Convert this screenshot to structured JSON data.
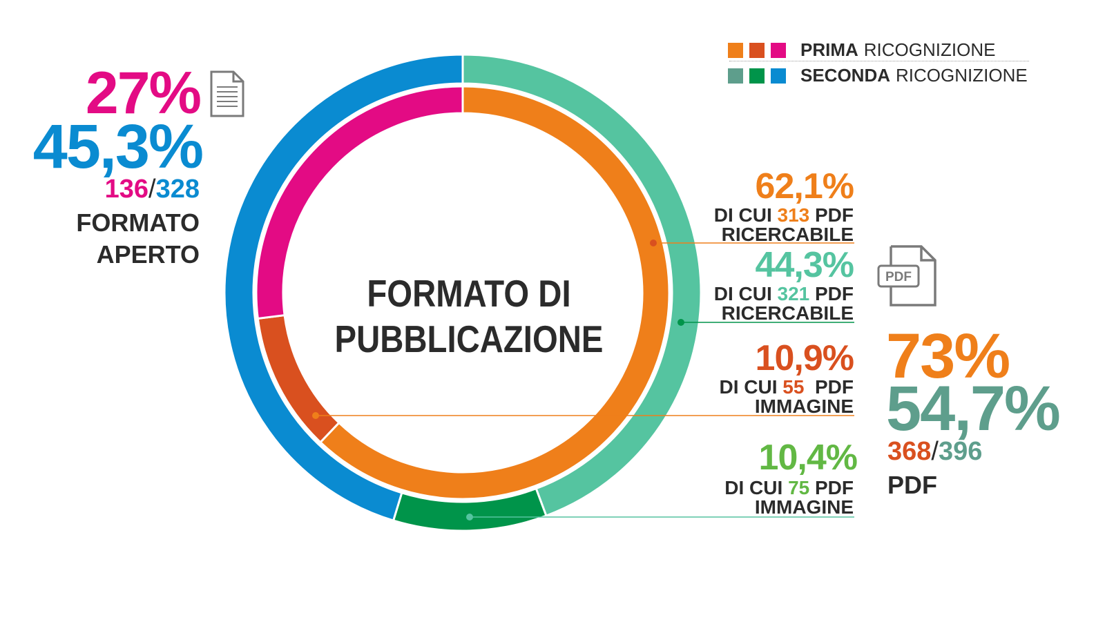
{
  "colors": {
    "prima_open": "#e30b84",
    "prima_pdf_searchable": "#ef7f1a",
    "prima_pdf_image": "#d9501f",
    "seconda_open": "#0a8bd1",
    "seconda_pdf_searchable": "#55c4a0",
    "seconda_pdf_image": "#00944a",
    "seconda_pdf_total": "#5e9e8c",
    "seconda_pdf_image_label": "#62b844",
    "icon": "#7a7a7a",
    "text": "#2b2b2b"
  },
  "legend": [
    {
      "bold": "PRIMA",
      "rest": "RICOGNIZIONE",
      "swatches": [
        "#ef7f1a",
        "#d9501f",
        "#e30b84"
      ]
    },
    {
      "bold": "SECONDA",
      "rest": "RICOGNIZIONE",
      "swatches": [
        "#5e9e8c",
        "#00944a",
        "#0a8bd1"
      ]
    }
  ],
  "center_title": [
    "FORMATO DI",
    "PUBBLICAZIONE"
  ],
  "open_format": {
    "pct_prima": "27%",
    "pct_seconda": "45,3%",
    "count_prima": "136",
    "slash": "/",
    "count_seconda": "328",
    "label_line1": "FORMATO",
    "label_line2": "APERTO",
    "icon": "document-icon"
  },
  "pdf_total": {
    "pct_prima": "73%",
    "pct_seconda": "54,7%",
    "count_prima": "368",
    "slash": "/",
    "count_seconda": "396",
    "label": "PDF",
    "icon": "pdf-file-icon",
    "icon_text": "PDF"
  },
  "callouts": [
    {
      "pct": "62,1%",
      "prefix": "DI CUI ",
      "count": "313",
      "suffix": " PDF",
      "line2": "RICERCABILE",
      "color": "#ef7f1a"
    },
    {
      "pct": "44,3%",
      "prefix": "DI CUI ",
      "count": "321",
      "suffix": " PDF",
      "line2": "RICERCABILE",
      "color": "#55c4a0"
    },
    {
      "pct": "10,9%",
      "prefix": "DI CUI ",
      "count": "55",
      "suffix": "  PDF",
      "line2": "IMMAGINE",
      "color": "#d9501f"
    },
    {
      "pct": "10,4%",
      "prefix": "DI CUI ",
      "count": "75",
      "suffix": " PDF",
      "line2": "IMMAGINE",
      "color": "#62b844"
    }
  ],
  "chart_data": {
    "type": "pie",
    "donut": true,
    "series": [
      {
        "name": "PRIMA RICOGNIZIONE",
        "labels": [
          "FORMATO APERTO",
          "PDF RICERCABILE",
          "PDF IMMAGINE"
        ],
        "values": [
          27,
          62.1,
          10.9
        ],
        "colors": [
          "#e30b84",
          "#ef7f1a",
          "#d9501f"
        ]
      },
      {
        "name": "SECONDA RICOGNIZIONE",
        "labels": [
          "FORMATO APERTO",
          "PDF RICERCABILE",
          "PDF IMMAGINE"
        ],
        "values": [
          45.3,
          44.3,
          10.4
        ],
        "colors": [
          "#0a8bd1",
          "#55c4a0",
          "#00944a"
        ]
      }
    ],
    "title": "FORMATO DI PUBBLICAZIONE",
    "legend": "top-right"
  }
}
